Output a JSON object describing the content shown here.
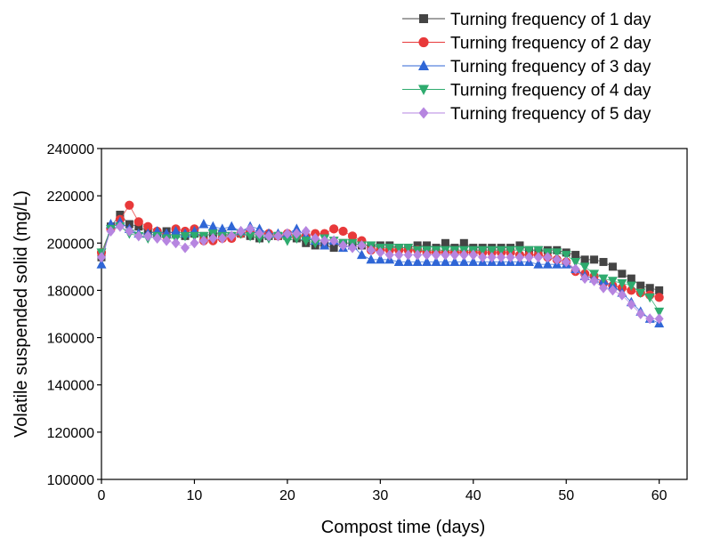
{
  "chart_data": {
    "type": "scatter",
    "title": "",
    "xlabel": "Compost time (days)",
    "ylabel": "Volatile suspended solid (mg/L)",
    "xlim": [
      0,
      63
    ],
    "ylim": [
      100000,
      240000
    ],
    "x_ticks": [
      0,
      10,
      20,
      30,
      40,
      50,
      60
    ],
    "y_ticks": [
      100000,
      120000,
      140000,
      160000,
      180000,
      200000,
      220000,
      240000
    ],
    "x_tick_labels": [
      "0",
      "10",
      "20",
      "30",
      "40",
      "50",
      "60"
    ],
    "y_tick_labels": [
      "100000",
      "120000",
      "140000",
      "160000",
      "180000",
      "200000",
      "220000",
      "240000"
    ],
    "grid": false,
    "legend_position": "top-right, above plot",
    "series": [
      {
        "name": "Turning frequency of 1 day",
        "color": "#444444",
        "marker": "square",
        "x": [
          0,
          1,
          2,
          3,
          4,
          5,
          6,
          7,
          8,
          9,
          10,
          11,
          12,
          13,
          14,
          15,
          16,
          17,
          18,
          19,
          20,
          21,
          22,
          23,
          24,
          25,
          26,
          27,
          28,
          29,
          30,
          31,
          32,
          33,
          34,
          35,
          36,
          37,
          38,
          39,
          40,
          41,
          42,
          43,
          44,
          45,
          46,
          47,
          48,
          49,
          50,
          51,
          52,
          53,
          54,
          55,
          56,
          57,
          58,
          59,
          60
        ],
        "y": [
          194000,
          207000,
          212000,
          208000,
          207000,
          205000,
          204000,
          205000,
          204000,
          203000,
          204000,
          203000,
          204000,
          204000,
          203000,
          204000,
          203000,
          202000,
          203000,
          203000,
          203000,
          202000,
          200000,
          199000,
          199000,
          198000,
          200000,
          200000,
          199000,
          199000,
          199000,
          199000,
          198000,
          198000,
          199000,
          199000,
          198000,
          200000,
          198000,
          200000,
          198000,
          198000,
          198000,
          198000,
          198000,
          199000,
          197000,
          197000,
          197000,
          197000,
          196000,
          195000,
          193000,
          193000,
          192000,
          190000,
          187000,
          185000,
          182000,
          181000,
          180000
        ]
      },
      {
        "name": "Turning frequency of 2 day",
        "color": "#e8393a",
        "marker": "circle",
        "x": [
          0,
          1,
          2,
          3,
          4,
          5,
          6,
          7,
          8,
          9,
          10,
          11,
          12,
          13,
          14,
          15,
          16,
          17,
          18,
          19,
          20,
          21,
          22,
          23,
          24,
          25,
          26,
          27,
          28,
          29,
          30,
          31,
          32,
          33,
          34,
          35,
          36,
          37,
          38,
          39,
          40,
          41,
          42,
          43,
          44,
          45,
          46,
          47,
          48,
          49,
          50,
          51,
          52,
          53,
          54,
          55,
          56,
          57,
          58,
          59,
          60
        ],
        "y": [
          196000,
          206000,
          210000,
          216000,
          209000,
          207000,
          205000,
          203000,
          206000,
          205000,
          206000,
          201000,
          201000,
          202000,
          202000,
          204000,
          205000,
          204000,
          204000,
          203000,
          204000,
          203000,
          203000,
          204000,
          204000,
          206000,
          205000,
          203000,
          201000,
          197000,
          197000,
          197000,
          197000,
          197000,
          197000,
          196000,
          196000,
          196000,
          196000,
          196000,
          196000,
          196000,
          196000,
          196000,
          196000,
          195000,
          195000,
          195000,
          194000,
          193000,
          192000,
          188000,
          187000,
          186000,
          183000,
          182000,
          181000,
          180000,
          179000,
          178000,
          177000
        ]
      },
      {
        "name": "Turning frequency of 3 day",
        "color": "#2f66d6",
        "marker": "triangle-up",
        "x": [
          0,
          1,
          2,
          3,
          4,
          5,
          6,
          7,
          8,
          9,
          10,
          11,
          12,
          13,
          14,
          15,
          16,
          17,
          18,
          19,
          20,
          21,
          22,
          23,
          24,
          25,
          26,
          27,
          28,
          29,
          30,
          31,
          32,
          33,
          34,
          35,
          36,
          37,
          38,
          39,
          40,
          41,
          42,
          43,
          44,
          45,
          46,
          47,
          48,
          49,
          50,
          51,
          52,
          53,
          54,
          55,
          56,
          57,
          58,
          59,
          60
        ],
        "y": [
          191000,
          208000,
          209000,
          206000,
          204000,
          204000,
          205000,
          204000,
          205000,
          204000,
          205000,
          208000,
          207000,
          206000,
          207000,
          205000,
          207000,
          206000,
          204000,
          204000,
          204000,
          206000,
          203000,
          201000,
          199000,
          201000,
          198000,
          199000,
          195000,
          193000,
          193000,
          193000,
          192000,
          192000,
          192000,
          192000,
          192000,
          192000,
          192000,
          192000,
          192000,
          192000,
          192000,
          192000,
          192000,
          192000,
          192000,
          191000,
          191000,
          191000,
          191000,
          189000,
          186000,
          185000,
          184000,
          182000,
          179000,
          175000,
          171000,
          168000,
          166000
        ]
      },
      {
        "name": "Turning frequency of 4 day",
        "color": "#2eab6e",
        "marker": "triangle-down",
        "x": [
          0,
          1,
          2,
          3,
          4,
          5,
          6,
          7,
          8,
          9,
          10,
          11,
          12,
          13,
          14,
          15,
          16,
          17,
          18,
          19,
          20,
          21,
          22,
          23,
          24,
          25,
          26,
          27,
          28,
          29,
          30,
          31,
          32,
          33,
          34,
          35,
          36,
          37,
          38,
          39,
          40,
          41,
          42,
          43,
          44,
          45,
          46,
          47,
          48,
          49,
          50,
          51,
          52,
          53,
          54,
          55,
          56,
          57,
          58,
          59,
          60
        ],
        "y": [
          196000,
          206000,
          207000,
          204000,
          203000,
          202000,
          203000,
          202000,
          202000,
          203000,
          203000,
          203000,
          204000,
          203000,
          203000,
          204000,
          203000,
          202000,
          202000,
          203000,
          201000,
          202000,
          201000,
          200000,
          202000,
          201000,
          200000,
          200000,
          199000,
          199000,
          198000,
          198000,
          198000,
          198000,
          197000,
          197000,
          197000,
          197000,
          197000,
          197000,
          197000,
          197000,
          197000,
          197000,
          197000,
          197000,
          197000,
          197000,
          196000,
          196000,
          195000,
          192000,
          190000,
          187000,
          185000,
          184000,
          183000,
          182000,
          179000,
          177000,
          171000
        ]
      },
      {
        "name": "Turning frequency of 5 day",
        "color": "#b685e0",
        "marker": "diamond",
        "x": [
          0,
          1,
          2,
          3,
          4,
          5,
          6,
          7,
          8,
          9,
          10,
          11,
          12,
          13,
          14,
          15,
          16,
          17,
          18,
          19,
          20,
          21,
          22,
          23,
          24,
          25,
          26,
          27,
          28,
          29,
          30,
          31,
          32,
          33,
          34,
          35,
          36,
          37,
          38,
          39,
          40,
          41,
          42,
          43,
          44,
          45,
          46,
          47,
          48,
          49,
          50,
          51,
          52,
          53,
          54,
          55,
          56,
          57,
          58,
          59,
          60
        ],
        "y": [
          194000,
          205000,
          207000,
          205000,
          203000,
          203000,
          202000,
          201000,
          200000,
          198000,
          200000,
          201000,
          202000,
          202000,
          203000,
          205000,
          206000,
          204000,
          203000,
          203000,
          204000,
          204000,
          205000,
          202000,
          201000,
          201000,
          199000,
          198000,
          199000,
          197000,
          196000,
          195000,
          195000,
          195000,
          195000,
          195000,
          195000,
          195000,
          195000,
          195000,
          195000,
          194000,
          194000,
          194000,
          194000,
          194000,
          194000,
          194000,
          194000,
          193000,
          192000,
          189000,
          185000,
          184000,
          181000,
          180000,
          178000,
          174000,
          170000,
          168000,
          168000
        ]
      }
    ]
  }
}
